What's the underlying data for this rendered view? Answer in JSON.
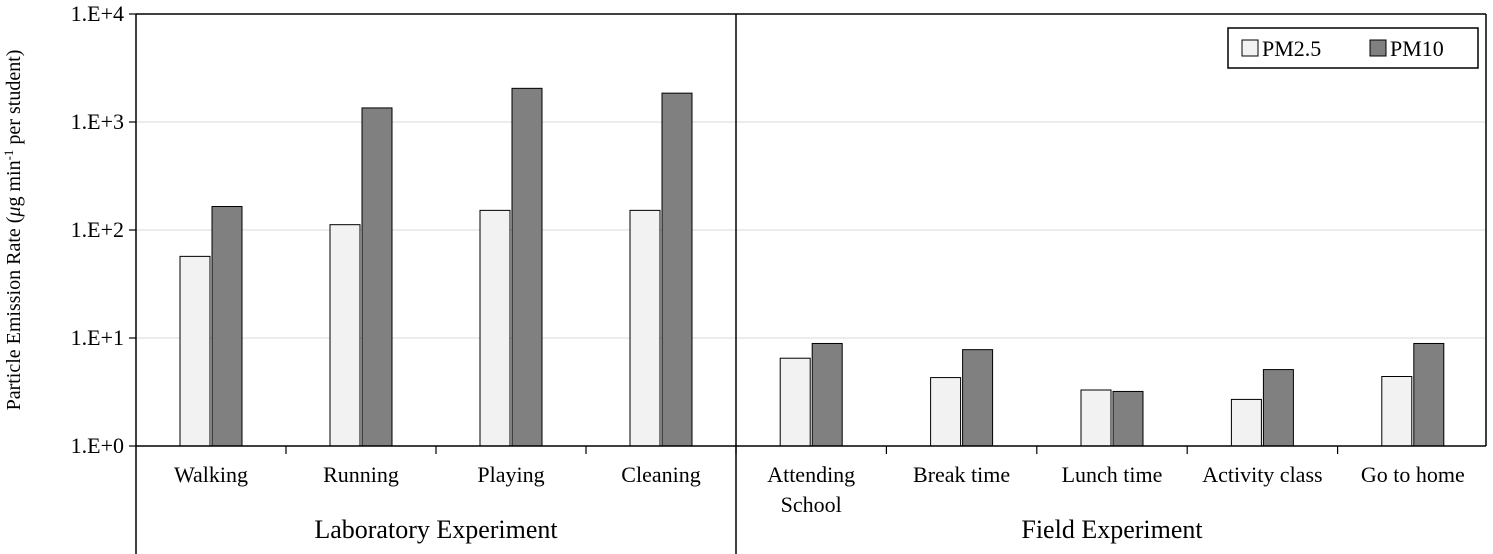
{
  "chart_data": {
    "type": "bar",
    "y_scale": "log",
    "ylim": [
      1,
      10000
    ],
    "ylabel_parts": [
      "Particle Emission Rate  (",
      "μ",
      "g min",
      "-1",
      " per student)"
    ],
    "yticks": [
      {
        "value": 1,
        "label": "1.E+0"
      },
      {
        "value": 10,
        "label": "1.E+1"
      },
      {
        "value": 100,
        "label": "1.E+2"
      },
      {
        "value": 1000,
        "label": "1.E+3"
      },
      {
        "value": 10000,
        "label": "1.E+4"
      }
    ],
    "grid": true,
    "legend_position": "top-right",
    "categories": [
      {
        "lines": [
          "Walking"
        ]
      },
      {
        "lines": [
          "Running"
        ]
      },
      {
        "lines": [
          "Playing"
        ]
      },
      {
        "lines": [
          "Cleaning"
        ]
      },
      {
        "lines": [
          "Attending",
          "School"
        ]
      },
      {
        "lines": [
          "Break time"
        ]
      },
      {
        "lines": [
          "Lunch time"
        ]
      },
      {
        "lines": [
          "Activity class"
        ]
      },
      {
        "lines": [
          "Go to home"
        ]
      }
    ],
    "groups": [
      {
        "label": "Laboratory Experiment",
        "count": 4
      },
      {
        "label": "Field Experiment",
        "count": 5
      }
    ],
    "series": [
      {
        "name": "PM2.5",
        "color": "#f2f2f2",
        "values": [
          57,
          112,
          152,
          152,
          6.5,
          4.3,
          3.3,
          2.7,
          4.4
        ]
      },
      {
        "name": "PM10",
        "color": "#808080",
        "values": [
          165,
          1350,
          2050,
          1850,
          8.9,
          7.8,
          3.2,
          5.1,
          8.9
        ]
      }
    ]
  }
}
